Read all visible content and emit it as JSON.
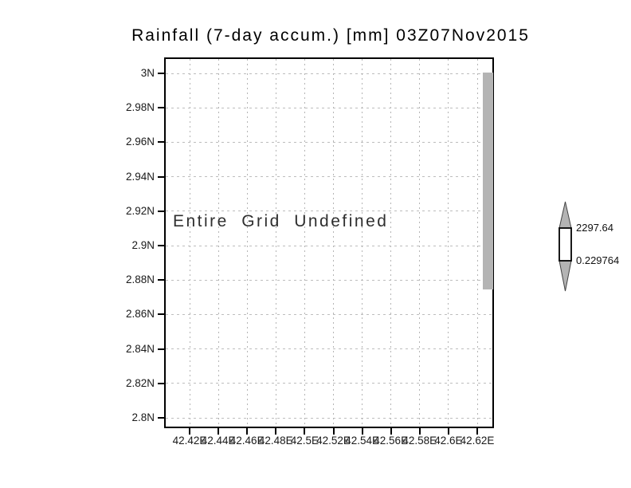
{
  "colors": {
    "background": "#ffffff",
    "frame": "#000000",
    "gridline": "#bdbdbd",
    "tick": "#000000",
    "text": "#1a1a1a",
    "undefined_strip": "#b4b4b4",
    "colorbar_arrow": "#b4b4b4",
    "colorbar_box_fill": "#ffffff",
    "colorbar_box_border": "#000000"
  },
  "chart_data": {
    "type": "heatmap",
    "title": "Rainfall (7-day accum.) [mm] 03Z07Nov2015",
    "annotation": "Entire Grid Undefined",
    "values": [],
    "grid": true,
    "x_tick_labels": [
      "42.42E",
      "42.44E",
      "42.46E",
      "42.48E",
      "42.5E",
      "42.52E",
      "42.54E",
      "42.56E",
      "42.58E",
      "42.6E",
      "42.62E"
    ],
    "y_tick_labels": [
      "3N",
      "2.98N",
      "2.96N",
      "2.94N",
      "2.92N",
      "2.9N",
      "2.88N",
      "2.86N",
      "2.84N",
      "2.82N",
      "2.8N"
    ],
    "x_range": [
      "42.42E",
      "42.62E"
    ],
    "y_range": [
      "2.8N",
      "3N"
    ],
    "colorbar": {
      "top_label": "2297.64",
      "bottom_label": "0.229764"
    },
    "undefined_strip": {
      "position": "right-edge-of-plot",
      "lat_top": "3N",
      "lat_bottom": "2.875N"
    }
  }
}
